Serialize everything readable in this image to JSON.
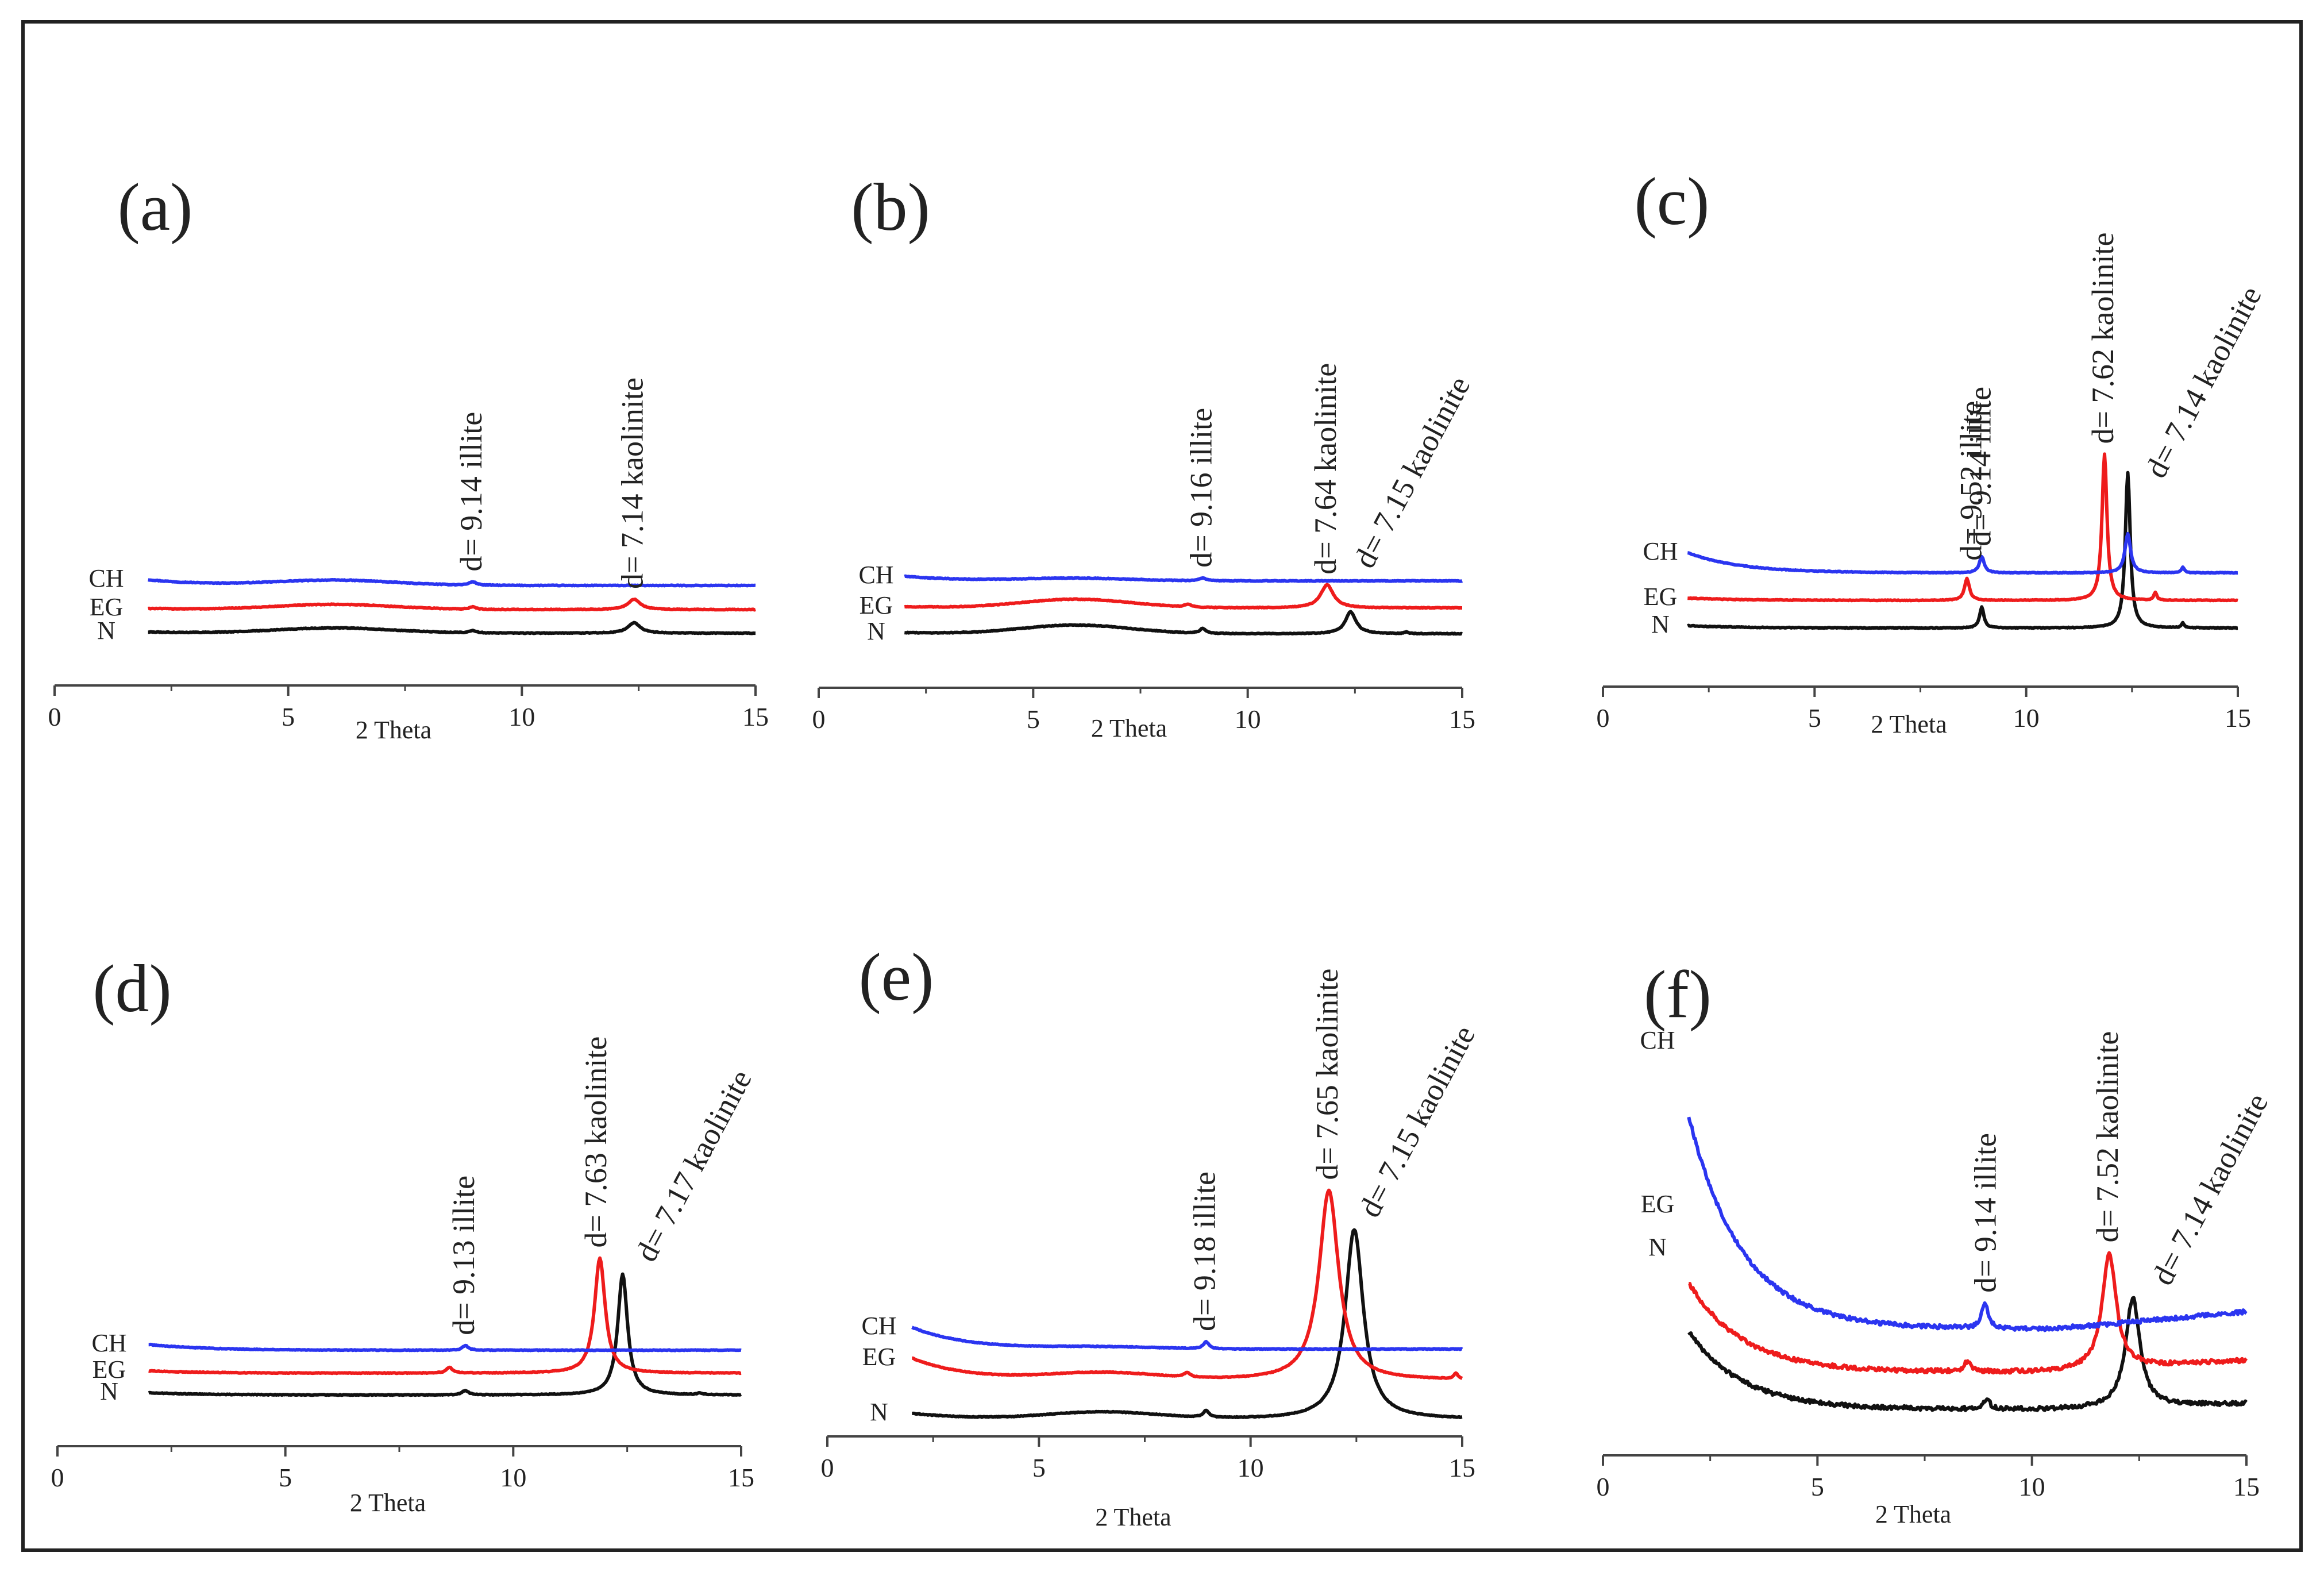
{
  "figure": {
    "colors": {
      "CH": "#2b35f0",
      "EG": "#ee1c1c",
      "N": "#111111",
      "frame": "#222222"
    }
  },
  "chart_data": [
    {
      "type": "line",
      "panel": "(a)",
      "xlabel": "2 Theta",
      "xlim": [
        0,
        15
      ],
      "xticks": [
        "0",
        "5",
        "10",
        "15"
      ],
      "series_labels": [
        "CH",
        "EG",
        "N"
      ],
      "offsets": [
        78,
        38,
        0
      ],
      "hump": {
        "center": 6.0,
        "width": 1.8,
        "height": 9
      },
      "series": [
        {
          "name": "CH",
          "color": "#2b35f0",
          "baseline": 5,
          "decay": 10,
          "peaks": [
            [
              8.95,
              6,
              0.09
            ]
          ]
        },
        {
          "name": "EG",
          "color": "#ee1c1c",
          "baseline": 3,
          "decay": 2,
          "peaks": [
            [
              8.95,
              4,
              0.09
            ],
            [
              12.4,
              18,
              0.16
            ]
          ]
        },
        {
          "name": "N",
          "color": "#111111",
          "baseline": 0,
          "decay": 2,
          "peaks": [
            [
              8.95,
              4,
              0.09
            ],
            [
              12.4,
              18,
              0.16
            ]
          ]
        }
      ],
      "annotations": [
        {
          "text": "d= 9.14 illite",
          "x": 8.95,
          "on": "CH"
        },
        {
          "text": "d= 7.14 kaolinite",
          "x": 12.4,
          "on": "EG"
        }
      ]
    },
    {
      "type": "line",
      "panel": "(b)",
      "xlabel": "2 Theta",
      "xlim": [
        0,
        15
      ],
      "xticks": [
        "0",
        "5",
        "10",
        "15"
      ],
      "series_labels": [
        "CH",
        "EG",
        "N"
      ],
      "offsets": [
        92,
        45,
        0
      ],
      "hump": {
        "center": 6.0,
        "width": 1.8,
        "height": 15
      },
      "series": [
        {
          "name": "CH",
          "color": "#2b35f0",
          "baseline": 0,
          "decay": 8,
          "peaks": [
            [
              8.95,
              5,
              0.09
            ]
          ]
        },
        {
          "name": "EG",
          "color": "#ee1c1c",
          "baseline": 0,
          "decay": 2,
          "peaks": [
            [
              8.6,
              5,
              0.08
            ],
            [
              11.85,
              40,
              0.18
            ]
          ]
        },
        {
          "name": "N",
          "color": "#111111",
          "baseline": 0,
          "decay": 2,
          "peaks": [
            [
              8.95,
              8,
              0.08
            ],
            [
              12.4,
              38,
              0.15
            ],
            [
              13.7,
              3,
              0.05
            ]
          ]
        }
      ],
      "annotations": [
        {
          "text": "d= 9.16 illite",
          "x": 8.95,
          "on": "CH"
        },
        {
          "text": "d= 7.64 kaolinite",
          "x": 11.85,
          "on": "EG"
        },
        {
          "text": "d= 7.15 kaolinite",
          "x": 12.55,
          "on": "CH",
          "offset": 10
        }
      ]
    },
    {
      "type": "line",
      "panel": "(c)",
      "xlabel": "2 Theta",
      "xlim": [
        0,
        15
      ],
      "xticks": [
        "0",
        "5",
        "10",
        "15"
      ],
      "series_labels": [
        "CH",
        "EG",
        "N"
      ],
      "offsets": [
        96,
        48,
        0
      ],
      "hump": {
        "center": 6.0,
        "width": 1.8,
        "height": 0
      },
      "series": [
        {
          "name": "CH",
          "color": "#2b35f0",
          "baseline": 0,
          "decay": 35,
          "peaks": [
            [
              8.95,
              28,
              0.07
            ],
            [
              12.4,
              68,
              0.08
            ],
            [
              13.7,
              10,
              0.04
            ]
          ]
        },
        {
          "name": "EG",
          "color": "#ee1c1c",
          "baseline": 0,
          "decay": 4,
          "peaks": [
            [
              8.6,
              38,
              0.07
            ],
            [
              11.85,
              255,
              0.07
            ],
            [
              13.05,
              14,
              0.04
            ]
          ]
        },
        {
          "name": "N",
          "color": "#111111",
          "baseline": 0,
          "decay": 4,
          "peaks": [
            [
              8.95,
              36,
              0.06
            ],
            [
              12.4,
              270,
              0.07
            ],
            [
              13.7,
              8,
              0.04
            ]
          ]
        }
      ],
      "annotations": [
        {
          "text": "d= 9.52 illite",
          "x": 8.6,
          "on": "CH",
          "offset": 10
        },
        {
          "text": "d= 9.14 illite",
          "x": 8.95,
          "on": "CH"
        },
        {
          "text": "d= 7.62 kaolinite",
          "x": 11.85,
          "on": "EG"
        },
        {
          "text": "d= 7.14 kaolinite",
          "x": 12.55,
          "on": "N",
          "offset": 35
        }
      ]
    },
    {
      "type": "line",
      "panel": "(d)",
      "xlabel": "2 Theta",
      "xlim": [
        0,
        15
      ],
      "xticks": [
        "0",
        "5",
        "10",
        "15"
      ],
      "series_labels": [
        "CH",
        "EG",
        "N"
      ],
      "offsets": [
        78,
        38,
        0
      ],
      "hump": {
        "center": 6.0,
        "width": 1.8,
        "height": 0
      },
      "series": [
        {
          "name": "CH",
          "color": "#2b35f0",
          "baseline": 0,
          "decay": 10,
          "peaks": [
            [
              8.95,
              8,
              0.08
            ]
          ]
        },
        {
          "name": "EG",
          "color": "#ee1c1c",
          "baseline": 0,
          "decay": 4,
          "peaks": [
            [
              8.6,
              10,
              0.08
            ],
            [
              11.9,
              200,
              0.14
            ]
          ]
        },
        {
          "name": "N",
          "color": "#111111",
          "baseline": 0,
          "decay": 4,
          "peaks": [
            [
              8.95,
              8,
              0.08
            ],
            [
              12.4,
              210,
              0.13
            ],
            [
              14.1,
              3,
              0.05
            ]
          ]
        }
      ],
      "annotations": [
        {
          "text": "d= 9.13 illite",
          "x": 8.95,
          "on": "CH"
        },
        {
          "text": "d= 7.63 kaolinite",
          "x": 11.85,
          "on": "EG"
        },
        {
          "text": "d= 7.17 kaolinite",
          "x": 12.5,
          "on": "N",
          "offset": 30
        }
      ]
    },
    {
      "type": "line",
      "panel": "(e)",
      "xlabel": "2 Theta",
      "xlim": [
        0,
        15
      ],
      "xticks": [
        "0",
        "5",
        "10",
        "15"
      ],
      "series_labels": [
        "CH",
        "EG",
        "N"
      ],
      "offsets": [
        122,
        68,
        0
      ],
      "hump": {
        "center": 6.5,
        "width": 1.8,
        "height": 12
      },
      "series": [
        {
          "name": "CH",
          "color": "#2b35f0",
          "baseline": 0,
          "decay": 38,
          "peaks": [
            [
              8.95,
              12,
              0.08
            ]
          ]
        },
        {
          "name": "EG",
          "color": "#ee1c1c",
          "baseline": 0,
          "decay": 38,
          "peaks": [
            [
              8.5,
              8,
              0.08
            ],
            [
              11.85,
              330,
              0.28
            ],
            [
              14.85,
              10,
              0.05
            ]
          ]
        },
        {
          "name": "N",
          "color": "#111111",
          "baseline": 0,
          "decay": 10,
          "peaks": [
            [
              8.95,
              12,
              0.08
            ],
            [
              12.45,
              330,
              0.26
            ]
          ]
        }
      ],
      "annotations": [
        {
          "text": "d= 9.18 illite",
          "x": 8.95,
          "on": "CH"
        },
        {
          "text": "d= 7.65 kaolinite",
          "x": 11.85,
          "on": "EG"
        },
        {
          "text": "d= 7.15 kaolinite",
          "x": 12.5,
          "on": "N",
          "offset": 20
        }
      ]
    },
    {
      "type": "line",
      "panel": "(f)",
      "xlabel": "2 Theta",
      "xlim": [
        0,
        15
      ],
      "xticks": [
        "0",
        "5",
        "10",
        "15"
      ],
      "series_labels": [
        "CH",
        "EG",
        "N"
      ],
      "offsets": [
        140,
        65,
        0
      ],
      "hump": {
        "center": 6.0,
        "width": 1.8,
        "height": 0
      },
      "series": [
        {
          "name": "CH",
          "color": "#2b35f0",
          "baseline": 0,
          "decay": 370,
          "noise": 7,
          "rise": 30,
          "peaks": [
            [
              8.9,
              45,
              0.09
            ]
          ]
        },
        {
          "name": "EG",
          "color": "#ee1c1c",
          "baseline": 0,
          "decay": 155,
          "noise": 7,
          "rise": 20,
          "peaks": [
            [
              8.5,
              18,
              0.09
            ],
            [
              11.8,
              200,
              0.2
            ]
          ]
        },
        {
          "name": "N",
          "color": "#111111",
          "baseline": 0,
          "decay": 135,
          "noise": 7,
          "rise": 10,
          "peaks": [
            [
              8.95,
              18,
              0.08
            ],
            [
              12.35,
              190,
              0.2
            ]
          ]
        }
      ],
      "annotations": [
        {
          "text": "d= 9.14 illite",
          "x": 8.95,
          "on": "CH"
        },
        {
          "text": "d= 7.52 kaolinite",
          "x": 11.8,
          "on": "EG"
        },
        {
          "text": "d= 7.14 kaolinite",
          "x": 12.4,
          "on": "N",
          "offset": 45
        }
      ]
    }
  ]
}
